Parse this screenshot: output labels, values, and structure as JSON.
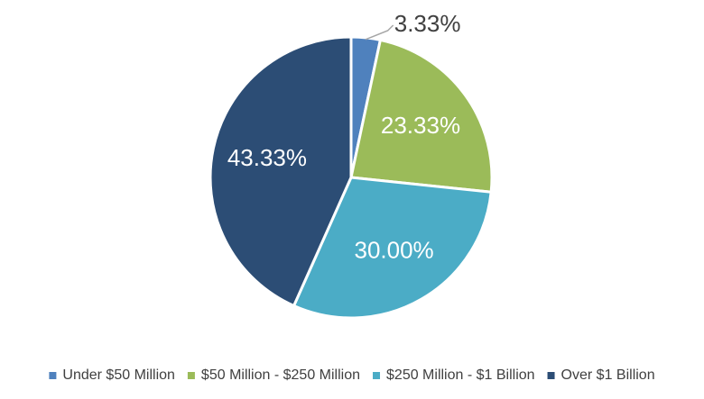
{
  "chart_data": {
    "type": "pie",
    "title": "",
    "start_angle_deg": 0,
    "direction": "clockwise",
    "legend_position": "bottom",
    "slices": [
      {
        "label": "Under $50 Million",
        "value": 3.33,
        "display": "3.33%",
        "color": "#4f81bd",
        "label_color": "#404040",
        "label_position": "outside"
      },
      {
        "label": "$50 Million - $250 Million",
        "value": 23.33,
        "display": "23.33%",
        "color": "#9bbb59",
        "label_color": "#ffffff",
        "label_position": "inside"
      },
      {
        "label": "$250 Million - $1 Billion",
        "value": 30.0,
        "display": "30.00%",
        "color": "#4bacc6",
        "label_color": "#ffffff",
        "label_position": "inside"
      },
      {
        "label": "Over $1 Billion",
        "value": 43.33,
        "display": "43.33%",
        "color": "#2c4d75",
        "label_color": "#ffffff",
        "label_position": "inside"
      }
    ]
  }
}
